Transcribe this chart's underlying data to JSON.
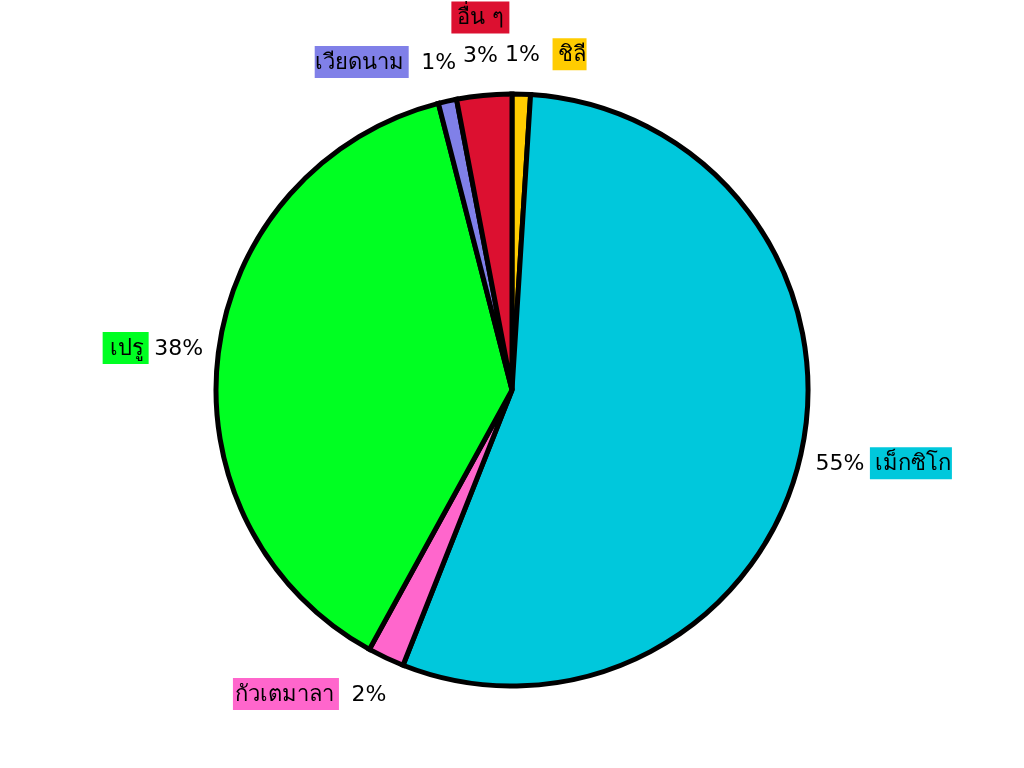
{
  "chart_data": {
    "type": "pie",
    "categories": [
      "ชิลี",
      "เม็กซิโก",
      "กัวเตมาลา",
      "เปรู",
      "เวียดนาม",
      "อื่น ๆ"
    ],
    "values": [
      1,
      55,
      2,
      38,
      1,
      3
    ],
    "colors": [
      "#ffcc00",
      "#00c8dc",
      "#ff66cc",
      "#00ff22",
      "#8080e8",
      "#dc1030"
    ],
    "value_labels": [
      "1%",
      "55%",
      "2%",
      "38%",
      "1%",
      "3%"
    ]
  }
}
